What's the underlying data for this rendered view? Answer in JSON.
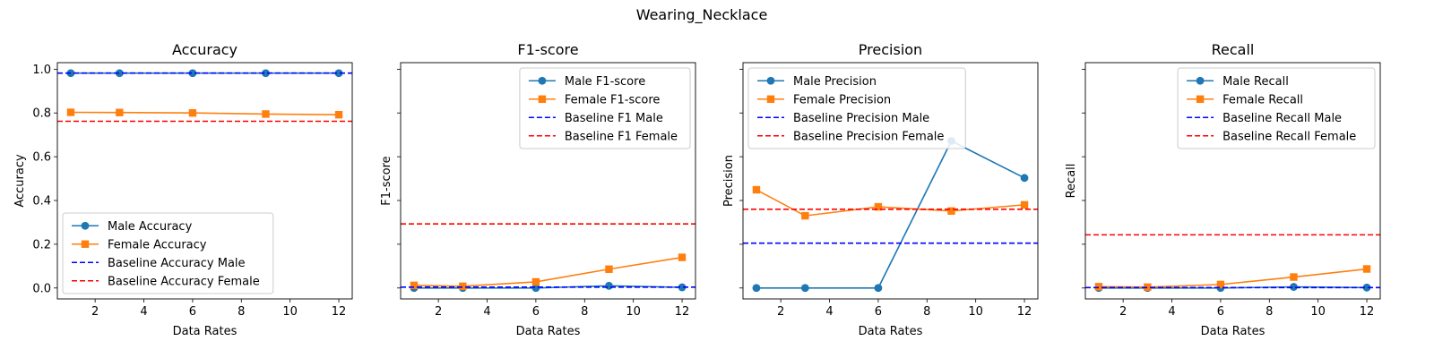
{
  "figure_title": "Wearing_Necklace",
  "chart_data": [
    {
      "type": "line",
      "title": "Accuracy",
      "xlabel": "Data Rates",
      "ylabel": "Accuracy",
      "x": [
        1,
        3,
        6,
        9,
        12
      ],
      "xlim": [
        0.45,
        12.55
      ],
      "ylim": [
        -0.05,
        1.03
      ],
      "xticks": [
        2,
        4,
        6,
        8,
        10,
        12
      ],
      "yticks": [
        0.0,
        0.2,
        0.4,
        0.6,
        0.8,
        1.0
      ],
      "ytick_labels": true,
      "series": [
        {
          "name": "Male Accuracy",
          "values": [
            0.982,
            0.982,
            0.982,
            0.982,
            0.982
          ],
          "color": "#1f77b4",
          "marker": "circle"
        },
        {
          "name": "Female Accuracy",
          "values": [
            0.803,
            0.802,
            0.8,
            0.795,
            0.792
          ],
          "color": "#ff7f0e",
          "marker": "square"
        }
      ],
      "baselines": [
        {
          "name": "Baseline Accuracy Male",
          "value": 0.982,
          "color": "#0000ff"
        },
        {
          "name": "Baseline Accuracy Female",
          "value": 0.762,
          "color": "#ff0000"
        }
      ],
      "legend_position": "lower-left"
    },
    {
      "type": "line",
      "title": "F1-score",
      "xlabel": "Data Rates",
      "ylabel": "F1-score",
      "x": [
        1,
        3,
        6,
        9,
        12
      ],
      "xlim": [
        0.45,
        12.55
      ],
      "ylim": [
        -0.05,
        1.03
      ],
      "xticks": [
        2,
        4,
        6,
        8,
        10,
        12
      ],
      "yticks": [
        0.0,
        0.2,
        0.4,
        0.6,
        0.8,
        1.0
      ],
      "ytick_labels": false,
      "series": [
        {
          "name": "Male F1-score",
          "values": [
            0.0,
            0.0,
            0.0,
            0.01,
            0.003
          ],
          "color": "#1f77b4",
          "marker": "circle"
        },
        {
          "name": "Female F1-score",
          "values": [
            0.012,
            0.008,
            0.028,
            0.086,
            0.14
          ],
          "color": "#ff7f0e",
          "marker": "square"
        }
      ],
      "baselines": [
        {
          "name": "Baseline F1 Male",
          "value": 0.004,
          "color": "#0000ff"
        },
        {
          "name": "Baseline F1 Female",
          "value": 0.293,
          "color": "#ff0000"
        }
      ],
      "legend_position": "upper-right"
    },
    {
      "type": "line",
      "title": "Precision",
      "xlabel": "Data Rates",
      "ylabel": "Precision",
      "x": [
        1,
        3,
        6,
        9,
        12
      ],
      "xlim": [
        0.45,
        12.55
      ],
      "ylim": [
        -0.05,
        1.03
      ],
      "xticks": [
        2,
        4,
        6,
        8,
        10,
        12
      ],
      "yticks": [
        0.0,
        0.2,
        0.4,
        0.6,
        0.8,
        1.0
      ],
      "ytick_labels": false,
      "series": [
        {
          "name": "Male Precision",
          "values": [
            0.0,
            0.0,
            0.0,
            0.672,
            0.503
          ],
          "color": "#1f77b4",
          "marker": "circle"
        },
        {
          "name": "Female Precision",
          "values": [
            0.449,
            0.33,
            0.371,
            0.352,
            0.38
          ],
          "color": "#ff7f0e",
          "marker": "square"
        }
      ],
      "baselines": [
        {
          "name": "Baseline Precision Male",
          "value": 0.205,
          "color": "#0000ff"
        },
        {
          "name": "Baseline Precision Female",
          "value": 0.36,
          "color": "#ff0000"
        }
      ],
      "legend_position": "upper-left"
    },
    {
      "type": "line",
      "title": "Recall",
      "xlabel": "Data Rates",
      "ylabel": "Recall",
      "x": [
        1,
        3,
        6,
        9,
        12
      ],
      "xlim": [
        0.45,
        12.55
      ],
      "ylim": [
        -0.05,
        1.03
      ],
      "xticks": [
        2,
        4,
        6,
        8,
        10,
        12
      ],
      "yticks": [
        0.0,
        0.2,
        0.4,
        0.6,
        0.8,
        1.0
      ],
      "ytick_labels": false,
      "series": [
        {
          "name": "Male Recall",
          "values": [
            0.0,
            0.0,
            0.0,
            0.005,
            0.002
          ],
          "color": "#1f77b4",
          "marker": "circle"
        },
        {
          "name": "Female Recall",
          "values": [
            0.006,
            0.004,
            0.016,
            0.05,
            0.087
          ],
          "color": "#ff7f0e",
          "marker": "square"
        }
      ],
      "baselines": [
        {
          "name": "Baseline Recall Male",
          "value": 0.002,
          "color": "#0000ff"
        },
        {
          "name": "Baseline Recall Female",
          "value": 0.243,
          "color": "#ff0000"
        }
      ],
      "legend_position": "upper-right"
    }
  ]
}
